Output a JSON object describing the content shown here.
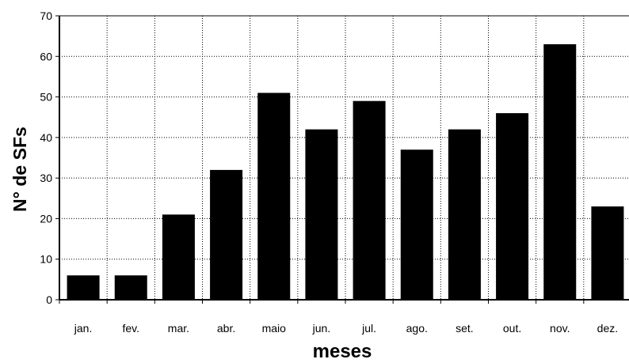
{
  "chart_data": {
    "type": "bar",
    "title": "",
    "xlabel": "meses",
    "ylabel": "N° de SFs",
    "categories": [
      "jan.",
      "fev.",
      "mar.",
      "abr.",
      "maio",
      "jun.",
      "jul.",
      "ago.",
      "set.",
      "out.",
      "nov.",
      "dez."
    ],
    "values": [
      6,
      6,
      21,
      32,
      51,
      42,
      49,
      37,
      42,
      46,
      63,
      23
    ],
    "ylim": [
      0,
      70
    ],
    "yticks": [
      0,
      10,
      20,
      30,
      40,
      50,
      60,
      70
    ],
    "grid": true,
    "bar_color": "#000000"
  }
}
